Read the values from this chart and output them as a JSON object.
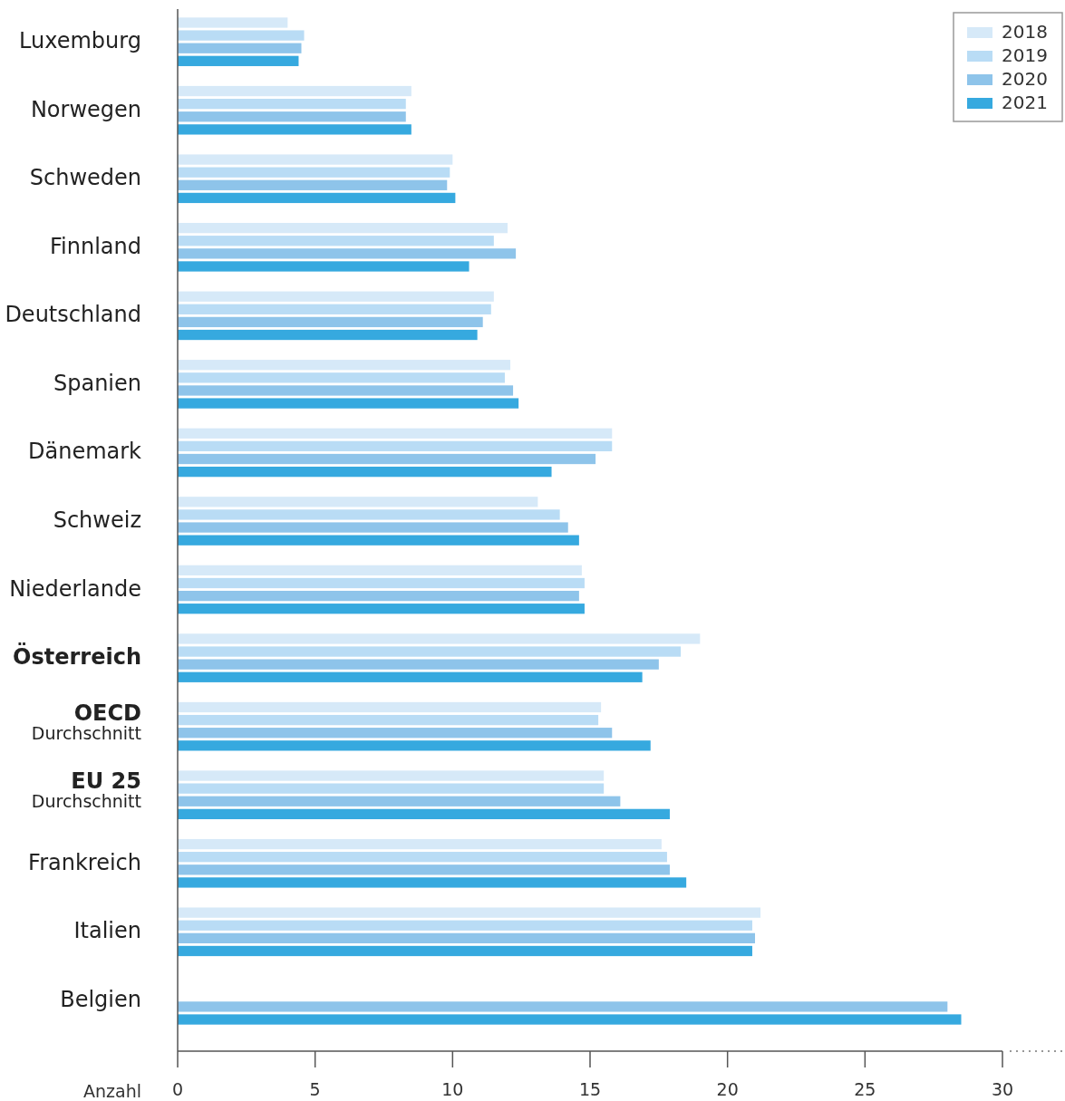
{
  "chart_data": {
    "type": "bar",
    "orientation": "horizontal",
    "xlabel": "Anzahl",
    "categories": [
      "Luxemburg",
      "Norwegen",
      "Schweden",
      "Finnland",
      "Deutschland",
      "Spanien",
      "Dänemark",
      "Schweiz",
      "Niederlande",
      "Österreich",
      "OECD\nDurchschnitt",
      "EU 25\nDurchschnitt",
      "Frankreich",
      "Italien",
      "Belgien"
    ],
    "series": [
      {
        "name": "2018",
        "color": "#d6e9f8",
        "values": [
          4.0,
          8.5,
          10.0,
          12.0,
          11.5,
          12.1,
          15.8,
          13.1,
          14.7,
          19.0,
          15.4,
          15.5,
          17.6,
          21.2,
          null
        ]
      },
      {
        "name": "2019",
        "color": "#b9dcf5",
        "values": [
          4.6,
          8.3,
          9.9,
          11.5,
          11.4,
          11.9,
          15.8,
          13.9,
          14.8,
          18.3,
          15.3,
          15.5,
          17.8,
          20.9,
          null
        ]
      },
      {
        "name": "2020",
        "color": "#8ec4ea",
        "values": [
          4.5,
          8.3,
          9.8,
          12.3,
          11.1,
          12.2,
          15.2,
          14.2,
          14.6,
          17.5,
          15.8,
          16.1,
          17.9,
          21.0,
          28.0
        ]
      },
      {
        "name": "2021",
        "color": "#36a9df",
        "values": [
          4.4,
          8.5,
          10.1,
          10.6,
          10.9,
          12.4,
          13.6,
          14.6,
          14.8,
          16.9,
          17.2,
          17.9,
          18.5,
          20.9,
          28.5
        ]
      }
    ],
    "xlim": [
      0,
      30
    ],
    "xticks": [
      0,
      5,
      10,
      15,
      20,
      25,
      30
    ],
    "grid": false,
    "legend": "top right"
  }
}
